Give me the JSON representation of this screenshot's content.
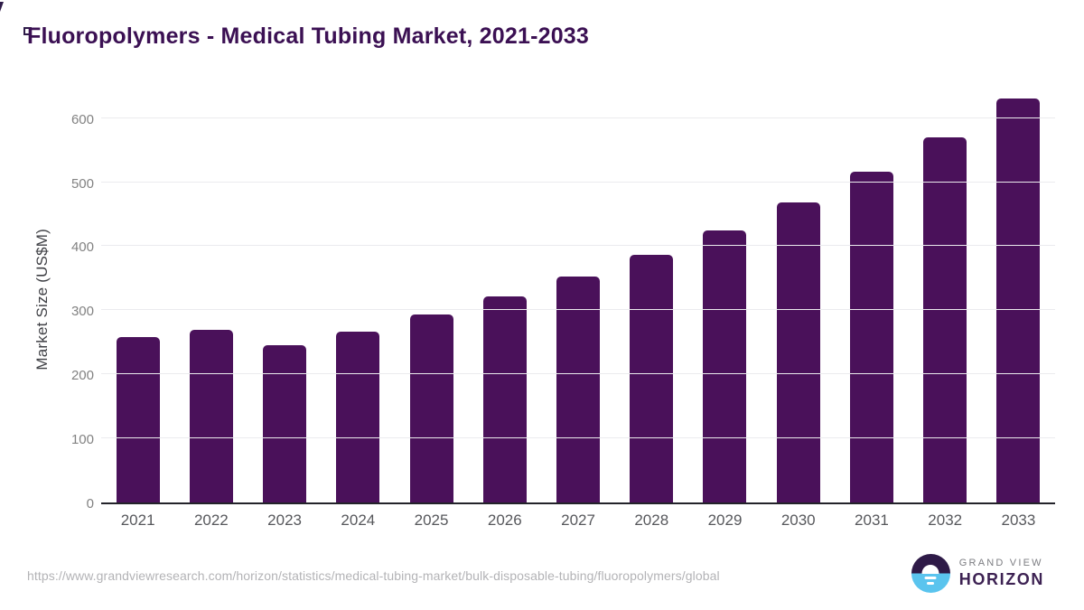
{
  "page": {
    "title": "Fluoropolymers - Medical Tubing Market, 2021-2033",
    "source_url": "https://www.grandviewresearch.com/horizon/statistics/medical-tubing-market/bulk-disposable-tubing/fluoropolymers/global"
  },
  "logo": {
    "line1": "GRAND VIEW",
    "line2": "HORIZON"
  },
  "colors": {
    "bar": "#4A115A",
    "title": "#3B1053",
    "gridline": "#ebebee",
    "axis_line": "#23232a",
    "y_tick_label": "#828282",
    "x_tick_label": "#57585c",
    "source_url_text": "#b3b3b6",
    "logo_circle_top": "#2e1a47",
    "logo_circle_bottom": "#5ac4ee"
  },
  "chart_data": {
    "type": "bar",
    "title": "Fluoropolymers - Medical Tubing Market, 2021-2033",
    "categories": [
      "2021",
      "2022",
      "2023",
      "2024",
      "2025",
      "2026",
      "2027",
      "2028",
      "2029",
      "2030",
      "2031",
      "2032",
      "2033"
    ],
    "values": [
      258,
      269,
      245,
      267,
      293,
      321,
      352,
      386,
      425,
      469,
      516,
      570,
      631
    ],
    "xlabel": "",
    "ylabel": "Market Size (US$M)",
    "ylim": [
      0,
      639
    ],
    "yticks": [
      0,
      100,
      200,
      300,
      400,
      500,
      600
    ],
    "grid": true,
    "legend": false,
    "bar_color": "#4A115A"
  }
}
